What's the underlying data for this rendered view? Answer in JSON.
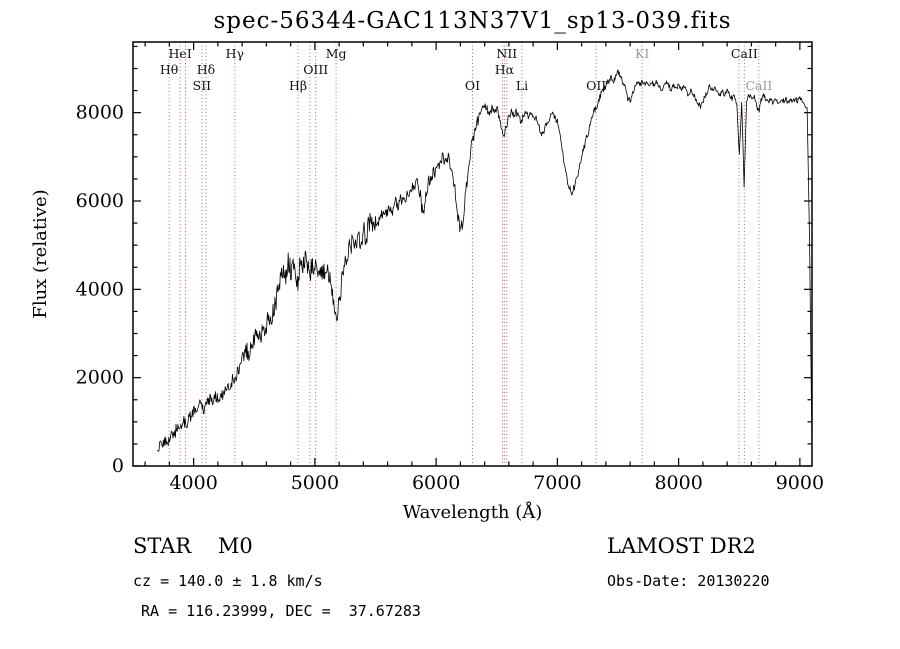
{
  "title": "spec-56344-GAC113N37V1_sp13-039.fits",
  "annotations": {
    "class_label": "STAR    M0",
    "cz": "cz = 140.0 ± 1.8 km/s",
    "radec": "RA = 116.23999, DEC =  37.67283",
    "survey": "LAMOST DR2",
    "obs_date": "Obs-Date: 20130220"
  },
  "chart_data": {
    "type": "line",
    "title": "spec-56344-GAC113N37V1_sp13-039.fits",
    "xlabel": "Wavelength (Å)",
    "ylabel": "Flux (relative)",
    "xlim": [
      3500,
      9100
    ],
    "ylim": [
      0,
      9600
    ],
    "x_ticks": [
      4000,
      5000,
      6000,
      7000,
      8000,
      9000
    ],
    "y_ticks": [
      0,
      2000,
      4000,
      6000,
      8000
    ],
    "x_minor_step": 200,
    "y_minor_step": 500,
    "line_color": "#000000",
    "spectral_line_color": "#aa5a5a",
    "grid": false,
    "legend": false,
    "x_start": 3700,
    "x_step": 20,
    "flux": [
      300,
      550,
      350,
      620,
      480,
      650,
      780,
      620,
      900,
      760,
      950,
      1020,
      880,
      1060,
      1150,
      1260,
      1320,
      1420,
      1350,
      1280,
      1380,
      1500,
      1530,
      1470,
      1560,
      1540,
      1500,
      1620,
      1700,
      1820,
      1760,
      1950,
      1880,
      2120,
      2240,
      2380,
      2520,
      2620,
      2560,
      2720,
      2870,
      2920,
      2820,
      3020,
      3120,
      3220,
      3320,
      3180,
      3520,
      3720,
      4050,
      4220,
      4520,
      4300,
      4650,
      4420,
      4550,
      4320,
      4180,
      4600,
      4480,
      4720,
      4580,
      4400,
      4520,
      4620,
      4380,
      4520,
      4300,
      4420,
      4550,
      4250,
      3950,
      3450,
      3320,
      3750,
      4150,
      4450,
      4720,
      4920,
      5020,
      5120,
      5000,
      5220,
      5080,
      5320,
      5180,
      5400,
      5520,
      5380,
      5600,
      5480,
      5700,
      5580,
      5780,
      5680,
      5880,
      5780,
      5980,
      5880,
      6000,
      6080,
      5980,
      6180,
      6080,
      6280,
      6180,
      6380,
      6280,
      5900,
      5820,
      6220,
      6420,
      6520,
      6620,
      6700,
      6800,
      6880,
      6980,
      6880,
      6980,
      6780,
      6480,
      6150,
      5600,
      5320,
      5550,
      6050,
      6550,
      7050,
      7380,
      7600,
      7820,
      8000,
      8080,
      8180,
      8080,
      7980,
      8100,
      8000,
      8120,
      7900,
      7680,
      7480,
      7700,
      7920,
      8020,
      7920,
      8020,
      7900,
      7800,
      7920,
      8020,
      7920,
      8000,
      7920,
      7880,
      7780,
      7580,
      7500,
      7720,
      7820,
      7920,
      8000,
      7900,
      7800,
      7600,
      7200,
      6800,
      6500,
      6280,
      6200,
      6320,
      6520,
      6720,
      7020,
      7220,
      7420,
      7620,
      7820,
      8020,
      8120,
      8300,
      8420,
      8520,
      8620,
      8700,
      8800,
      8700,
      8820,
      8900,
      8800,
      8700,
      8600,
      8300,
      8250,
      8420,
      8600,
      8700,
      8620,
      8700,
      8620,
      8700,
      8620,
      8700,
      8620,
      8700,
      8600,
      8520,
      8620,
      8700,
      8600,
      8520,
      8620,
      8520,
      8620,
      8520,
      8600,
      8500,
      8420,
      8500,
      8420,
      8320,
      8220,
      8120,
      8220,
      8400,
      8500,
      8600,
      8500,
      8600,
      8500,
      8420,
      8500,
      8420,
      8500,
      8400,
      8320,
      8420,
      8200,
      7000,
      8300,
      6300,
      8300,
      8400,
      8300,
      8380,
      8200,
      8000,
      8300,
      8380,
      8300,
      8220,
      8300,
      8220,
      8300,
      8220,
      8300,
      8260,
      8300,
      8260,
      8300,
      8260,
      8300,
      8260,
      8300,
      8260,
      8200,
      8100,
      5000,
      300
    ],
    "noise_profile": [
      [
        4400,
        140
      ],
      [
        5500,
        260
      ],
      [
        6350,
        170
      ],
      [
        7600,
        90
      ],
      [
        9200,
        70
      ]
    ],
    "spectral_lines": [
      {
        "label": "Hθ",
        "wavelength": 3798,
        "row": 2,
        "faint": false
      },
      {
        "label": "HeI",
        "wavelength": 3889,
        "row": 1,
        "faint": false
      },
      {
        "label": "",
        "wavelength": 3933,
        "row": 0,
        "faint": false
      },
      {
        "label": "SII",
        "wavelength": 4068,
        "row": 3,
        "faint": false
      },
      {
        "label": "Hδ",
        "wavelength": 4102,
        "row": 2,
        "faint": false
      },
      {
        "label": "Hγ",
        "wavelength": 4340,
        "row": 1,
        "faint": false
      },
      {
        "label": "Hβ",
        "wavelength": 4861,
        "row": 3,
        "faint": false
      },
      {
        "label": "",
        "wavelength": 4959,
        "row": 0,
        "faint": false
      },
      {
        "label": "OIII",
        "wavelength": 5007,
        "row": 2,
        "faint": false
      },
      {
        "label": "Mg",
        "wavelength": 5175,
        "row": 1,
        "faint": false
      },
      {
        "label": "OI",
        "wavelength": 6300,
        "row": 3,
        "faint": false
      },
      {
        "label": "",
        "wavelength": 6548,
        "row": 0,
        "faint": false
      },
      {
        "label": "Hα",
        "wavelength": 6563,
        "row": 2,
        "faint": false
      },
      {
        "label": "NII",
        "wavelength": 6583,
        "row": 1,
        "faint": false
      },
      {
        "label": "Li",
        "wavelength": 6708,
        "row": 3,
        "faint": false
      },
      {
        "label": "OII",
        "wavelength": 7320,
        "row": 3,
        "faint": false
      },
      {
        "label": "KI",
        "wavelength": 7699,
        "row": 1,
        "faint": true
      },
      {
        "label": "",
        "wavelength": 8498,
        "row": 0,
        "faint": false
      },
      {
        "label": "CaII",
        "wavelength": 8542,
        "row": 1,
        "faint": false
      },
      {
        "label": "CaII",
        "wavelength": 8662,
        "row": 3,
        "faint": true
      }
    ]
  }
}
